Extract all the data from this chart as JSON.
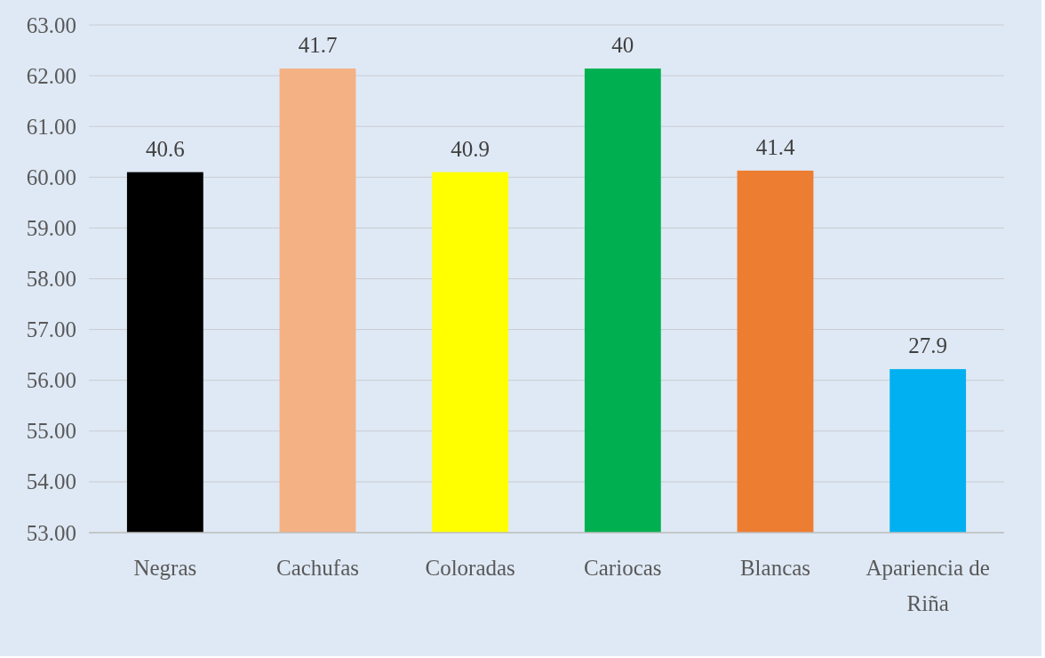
{
  "chart_data": {
    "type": "bar",
    "categories": [
      "Negras",
      "Cachufas",
      "Coloradas",
      "Cariocas",
      "Blancas",
      "Apariencia de Riña"
    ],
    "values": [
      60.1,
      62.14,
      60.1,
      62.14,
      60.13,
      56.22
    ],
    "colors": [
      "#000000",
      "#f4b183",
      "#ffff00",
      "#00b050",
      "#ed7d31",
      "#00b0f0"
    ],
    "annotations": [
      {
        "text": "40.6",
        "x": "Negras",
        "y": 60.1
      },
      {
        "text": "41.7",
        "x": "Cachufas",
        "y": 62.14
      },
      {
        "text": "40.9",
        "x": "Coloradas",
        "y": 60.1
      },
      {
        "text": "40",
        "x": "Cariocas",
        "y": 62.14
      },
      {
        "text": "41.4",
        "x": "Blancas",
        "y": 60.13
      },
      {
        "text": "27.9",
        "x": "Apariencia de Riña",
        "y": 56.22
      }
    ],
    "ylim": [
      53,
      63
    ],
    "yticks": [
      {
        "value": 53,
        "label": "53.00"
      },
      {
        "value": 54,
        "label": "54.00"
      },
      {
        "value": 55,
        "label": "55.00"
      },
      {
        "value": 56,
        "label": "56.00"
      },
      {
        "value": 57,
        "label": "57.00"
      },
      {
        "value": 58,
        "label": "58.00"
      },
      {
        "value": 59,
        "label": "59.00"
      },
      {
        "value": 60,
        "label": "60.00"
      },
      {
        "value": 61,
        "label": "61.00"
      },
      {
        "value": 62,
        "label": "62.00"
      },
      {
        "value": 63,
        "label": "63.00"
      }
    ],
    "grid": "y"
  }
}
